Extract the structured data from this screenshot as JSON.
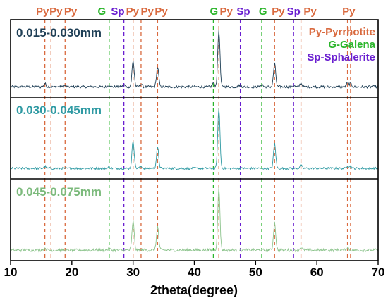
{
  "chart_data": {
    "type": "line",
    "xlabel": "2theta(degree)",
    "ylabel": "",
    "xlim": [
      10,
      70
    ],
    "x_ticks": [
      "10",
      "20",
      "30",
      "40",
      "50",
      "60",
      "70"
    ],
    "grid": false,
    "phase_colors": {
      "Py": "#d96a3f",
      "G": "#2bb52b",
      "Sp": "#6a1fd0"
    },
    "top_labels": [
      {
        "text": "Py",
        "phase": "Py",
        "x": 15.2
      },
      {
        "text": "Py",
        "phase": "Py",
        "x": 17.4
      },
      {
        "text": "Py",
        "phase": "Py",
        "x": 19.8
      },
      {
        "text": "G",
        "phase": "G",
        "x": 24.9
      },
      {
        "text": "Sp",
        "phase": "Sp",
        "x": 27.5
      },
      {
        "text": "Py",
        "phase": "Py",
        "x": 29.9
      },
      {
        "text": "Py",
        "phase": "Py",
        "x": 32.3
      },
      {
        "text": "Py",
        "phase": "Py",
        "x": 34.6
      },
      {
        "text": "G",
        "phase": "G",
        "x": 43.2
      },
      {
        "text": "Py",
        "phase": "Py",
        "x": 45.2
      },
      {
        "text": "Sp",
        "phase": "Sp",
        "x": 48.0
      },
      {
        "text": "G",
        "phase": "G",
        "x": 51.2
      },
      {
        "text": "Py",
        "phase": "Py",
        "x": 53.7
      },
      {
        "text": "Sp",
        "phase": "Sp",
        "x": 56.2
      },
      {
        "text": "Py",
        "phase": "Py",
        "x": 58.9
      },
      {
        "text": "Py",
        "phase": "Py",
        "x": 65.2
      }
    ],
    "ref_lines": [
      {
        "x": 15.6,
        "phase": "Py"
      },
      {
        "x": 16.6,
        "phase": "Py"
      },
      {
        "x": 18.9,
        "phase": "Py"
      },
      {
        "x": 26.1,
        "phase": "G"
      },
      {
        "x": 28.5,
        "phase": "Sp"
      },
      {
        "x": 30.0,
        "phase": "Py"
      },
      {
        "x": 31.3,
        "phase": "Py"
      },
      {
        "x": 34.0,
        "phase": "Py"
      },
      {
        "x": 43.1,
        "phase": "G"
      },
      {
        "x": 44.0,
        "phase": "Py"
      },
      {
        "x": 47.5,
        "phase": "Sp"
      },
      {
        "x": 51.0,
        "phase": "G"
      },
      {
        "x": 53.1,
        "phase": "Py"
      },
      {
        "x": 56.2,
        "phase": "Sp"
      },
      {
        "x": 57.4,
        "phase": "Py"
      },
      {
        "x": 65.0,
        "phase": "Py"
      },
      {
        "x": 65.5,
        "phase": "Py"
      }
    ],
    "legend": [
      {
        "text": "Py-Pyrrhotite",
        "phase": "Py"
      },
      {
        "text": "G-Galena",
        "phase": "G"
      },
      {
        "text": "Sp-Sphalerite",
        "phase": "Sp"
      }
    ],
    "series": [
      {
        "name": "0.015-0.030mm",
        "color": "#1f3f56",
        "label_color": "#1f3f56",
        "noise": 1.2,
        "peaks": [
          [
            15.6,
            5
          ],
          [
            18.9,
            2
          ],
          [
            26.1,
            3
          ],
          [
            28.5,
            3
          ],
          [
            30.0,
            40
          ],
          [
            31.3,
            4
          ],
          [
            34.0,
            30
          ],
          [
            43.1,
            6
          ],
          [
            44.0,
            88
          ],
          [
            47.5,
            3
          ],
          [
            51.0,
            4
          ],
          [
            53.1,
            36
          ],
          [
            56.2,
            2
          ],
          [
            57.4,
            6
          ],
          [
            65.0,
            6
          ],
          [
            65.5,
            5
          ]
        ]
      },
      {
        "name": "0.030-0.045mm",
        "color": "#2f9aa3",
        "label_color": "#2f9aa3",
        "noise": 1.0,
        "peaks": [
          [
            15.6,
            3
          ],
          [
            26.1,
            2
          ],
          [
            30.0,
            40
          ],
          [
            31.3,
            3
          ],
          [
            34.0,
            30
          ],
          [
            44.0,
            88
          ],
          [
            53.1,
            36
          ],
          [
            57.4,
            4
          ],
          [
            65.0,
            4
          ],
          [
            65.5,
            3
          ]
        ]
      },
      {
        "name": "0.045-0.075mm",
        "color": "#8dc48d",
        "label_color": "#7cba7c",
        "noise": 1.3,
        "peaks": [
          [
            15.6,
            3
          ],
          [
            26.1,
            2
          ],
          [
            30.0,
            42
          ],
          [
            34.0,
            34
          ],
          [
            44.0,
            90
          ],
          [
            53.1,
            40
          ],
          [
            57.4,
            4
          ],
          [
            65.0,
            4
          ]
        ]
      }
    ]
  }
}
